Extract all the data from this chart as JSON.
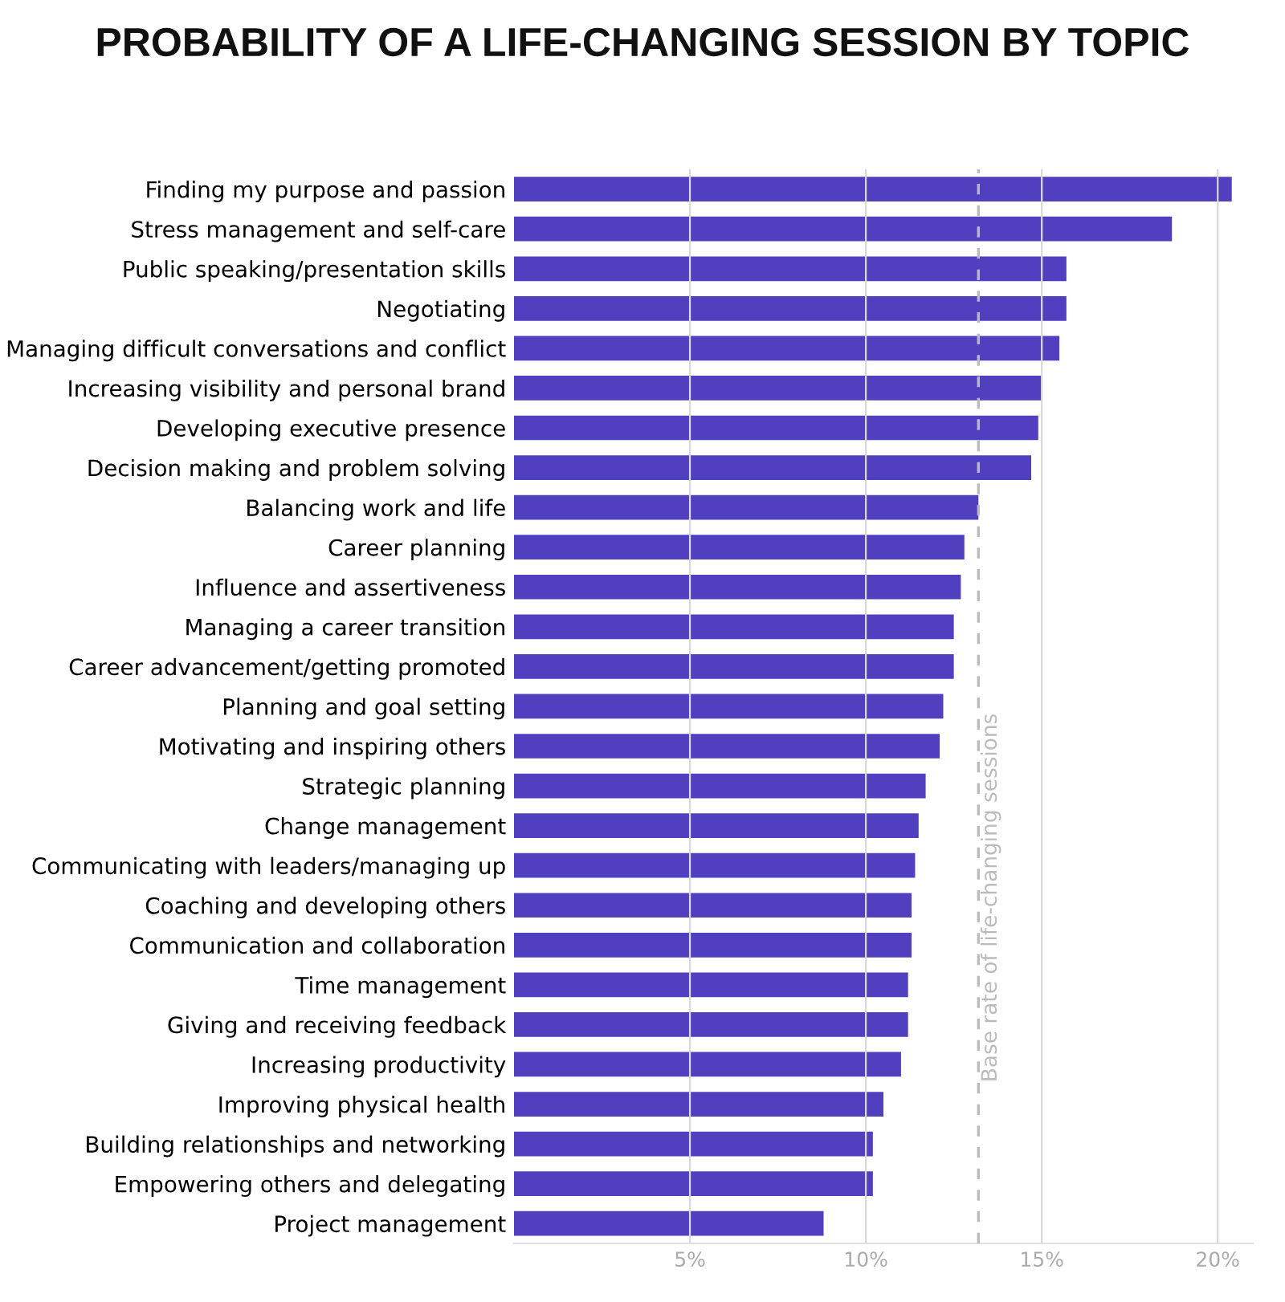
{
  "chart_data": {
    "type": "bar",
    "orientation": "horizontal",
    "title": "PROBABILITY OF A LIFE-CHANGING SESSION BY TOPIC",
    "categories": [
      "Finding my purpose and passion",
      "Stress management and self-care",
      "Public speaking/presentation skills",
      "Negotiating",
      "Managing difficult conversations and conflict",
      "Increasing visibility and personal brand",
      "Developing executive presence",
      "Decision making and problem solving",
      "Balancing work and life",
      "Career planning",
      "Influence and assertiveness",
      "Managing a career transition",
      "Career advancement/getting promoted",
      "Planning and goal setting",
      "Motivating and inspiring others",
      "Strategic planning",
      "Change management",
      "Communicating with leaders/managing up",
      "Coaching and developing others",
      "Communication and collaboration",
      "Time management",
      "Giving and receiving feedback",
      "Increasing productivity",
      "Improving physical health",
      "Building relationships and networking",
      "Empowering others and delegating",
      "Project management"
    ],
    "values": [
      20.4,
      18.7,
      15.7,
      15.7,
      15.5,
      15.0,
      14.9,
      14.7,
      13.2,
      12.8,
      12.7,
      12.5,
      12.5,
      12.2,
      12.1,
      11.7,
      11.5,
      11.4,
      11.3,
      11.3,
      11.2,
      11.2,
      11.0,
      10.5,
      10.2,
      10.2,
      8.8
    ],
    "color": "#5040c0",
    "xlim": [
      0,
      21
    ],
    "xticks": [
      {
        "value": 5,
        "label": "5%"
      },
      {
        "value": 10,
        "label": "10%"
      },
      {
        "value": 15,
        "label": "15%"
      },
      {
        "value": 20,
        "label": "20%"
      }
    ],
    "grid": "x",
    "ref_lines": [
      {
        "axis": "x",
        "value": 13.2,
        "label": "Base rate of life-changing sessions",
        "color": "#bbbbbb",
        "line_style": "dashed"
      }
    ]
  }
}
